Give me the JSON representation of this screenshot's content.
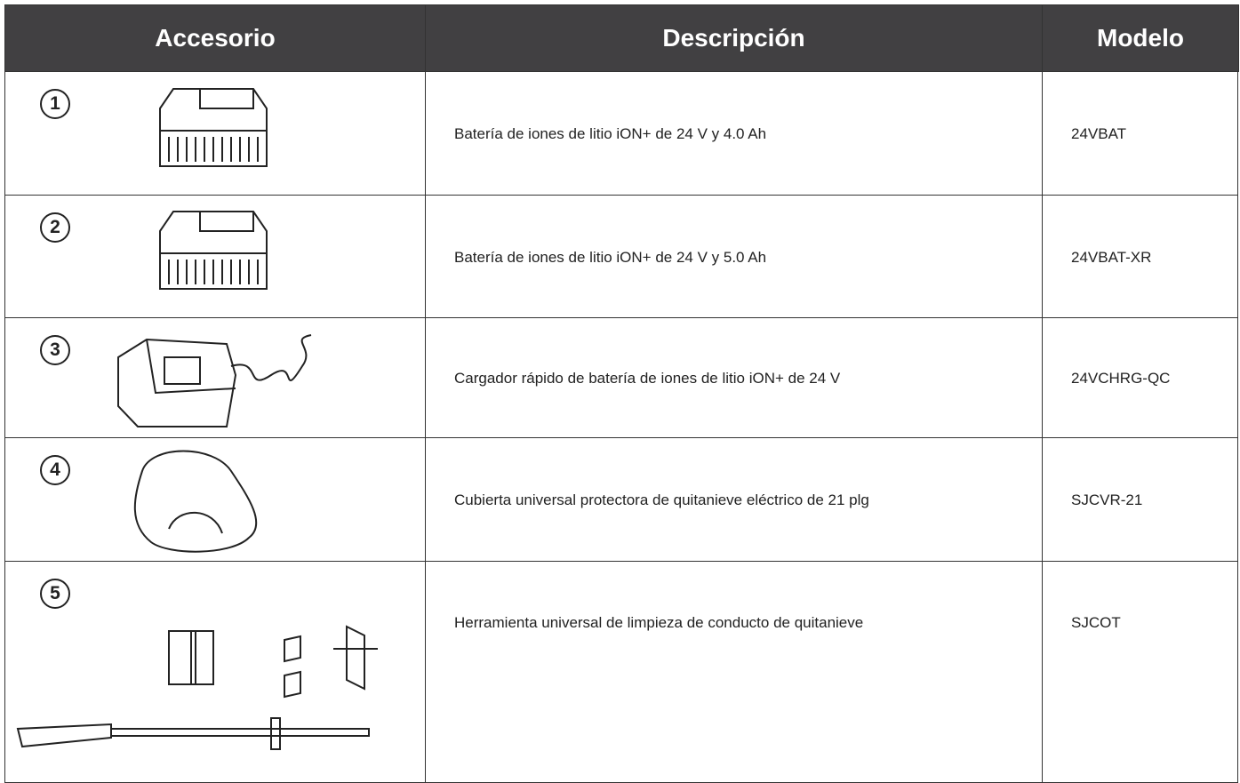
{
  "table": {
    "header": [
      "Accesorio",
      "Descripción",
      "Modelo"
    ],
    "rows": [
      {
        "number": "1",
        "description": "Batería de iones de litio iON+ de 24 V y 4.0 Ah",
        "model": "24VBAT"
      },
      {
        "number": "2",
        "description": "Batería de iones de litio iON+ de 24 V y 5.0 Ah",
        "model": "24VBAT-XR"
      },
      {
        "number": "3",
        "description": "Cargador rápido de batería de iones de litio iON+ de 24 V",
        "model": "24VCHRG-QC"
      },
      {
        "number": "4",
        "description": "Cubierta universal protectora de quitanieve eléctrico de 21 plg",
        "model": "SJCVR-21"
      },
      {
        "number": "5",
        "description": "Herramienta universal de limpieza de conducto de quitanieve",
        "model": "SJCOT"
      }
    ]
  }
}
